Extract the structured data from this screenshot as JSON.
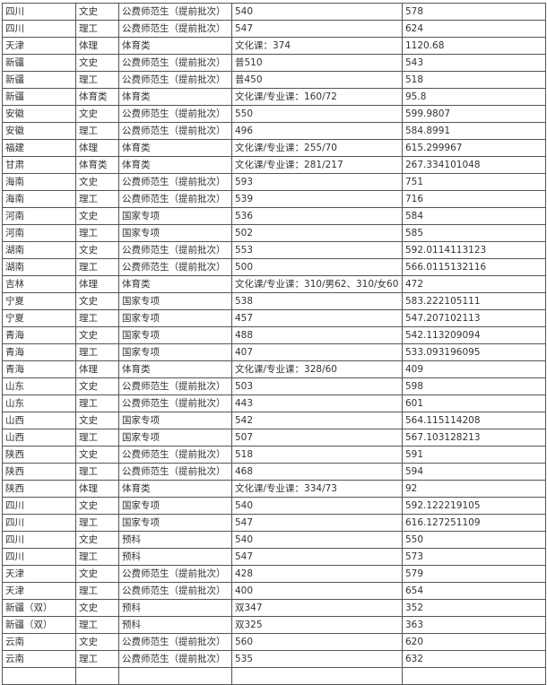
{
  "table": {
    "rows": [
      [
        "四川",
        "文史",
        "公费师范生（提前批次）",
        "540",
        "578"
      ],
      [
        "四川",
        "理工",
        "公费师范生（提前批次）",
        "547",
        "624"
      ],
      [
        "天津",
        "体理",
        "体育类",
        "文化课：374",
        "1120.68"
      ],
      [
        "新疆",
        "文史",
        "公费师范生（提前批次）",
        "普510",
        "543"
      ],
      [
        "新疆",
        "理工",
        "公费师范生（提前批次）",
        "普450",
        "518"
      ],
      [
        "新疆",
        "体育类",
        "体育类",
        "文化课/专业课：160/72",
        "95.8"
      ],
      [
        "安徽",
        "文史",
        "公费师范生（提前批次）",
        "550",
        "599.9807"
      ],
      [
        "安徽",
        "理工",
        "公费师范生（提前批次）",
        "496",
        "584.8991"
      ],
      [
        "福建",
        "体理",
        "体育类",
        "文化课/专业课：255/70",
        "615.299967"
      ],
      [
        "甘肃",
        "体育类",
        "体育类",
        "文化课/专业课：281/217",
        "267.334101048"
      ],
      [
        "海南",
        "文史",
        "公费师范生（提前批次）",
        "593",
        "751"
      ],
      [
        "海南",
        "理工",
        "公费师范生（提前批次）",
        "539",
        "716"
      ],
      [
        "河南",
        "文史",
        "国家专项",
        "536",
        "584"
      ],
      [
        "河南",
        "理工",
        "国家专项",
        "502",
        "585"
      ],
      [
        "湖南",
        "文史",
        "公费师范生（提前批次）",
        "553",
        "592.0114113123"
      ],
      [
        "湖南",
        "理工",
        "公费师范生（提前批次）",
        "500",
        "566.0115132116"
      ],
      [
        "吉林",
        "体理",
        "体育类",
        "文化课/专业课：310/男62、310/女60",
        "472"
      ],
      [
        "宁夏",
        "文史",
        "国家专项",
        "538",
        "583.222105111"
      ],
      [
        "宁夏",
        "理工",
        "国家专项",
        "457",
        "547.207102113"
      ],
      [
        "青海",
        "文史",
        "国家专项",
        "488",
        "542.113209094"
      ],
      [
        "青海",
        "理工",
        "国家专项",
        "407",
        "533.093196095"
      ],
      [
        "青海",
        "体理",
        "体育类",
        "文化课/专业课：328/60",
        "409"
      ],
      [
        "山东",
        "文史",
        "公费师范生（提前批次）",
        "503",
        "598"
      ],
      [
        "山东",
        "理工",
        "公费师范生（提前批次）",
        "443",
        "601"
      ],
      [
        "山西",
        "文史",
        "国家专项",
        "542",
        "564.115114208"
      ],
      [
        "山西",
        "理工",
        "国家专项",
        "507",
        "567.103128213"
      ],
      [
        "陕西",
        "文史",
        "公费师范生（提前批次）",
        "518",
        "591"
      ],
      [
        "陕西",
        "理工",
        "公费师范生（提前批次）",
        "468",
        "594"
      ],
      [
        "陕西",
        "体理",
        "体育类",
        "文化课/专业课：334/73",
        "92"
      ],
      [
        "四川",
        "文史",
        "国家专项",
        "540",
        "592.122219105"
      ],
      [
        "四川",
        "理工",
        "国家专项",
        "547",
        "616.127251109"
      ],
      [
        "四川",
        "文史",
        "预科",
        "540",
        "550"
      ],
      [
        "四川",
        "理工",
        "预科",
        "547",
        "573"
      ],
      [
        "天津",
        "文史",
        "公费师范生（提前批次）",
        "428",
        "579"
      ],
      [
        "天津",
        "理工",
        "公费师范生（提前批次）",
        "400",
        "654"
      ],
      [
        "新疆（双）",
        "文史",
        "预科",
        "双347",
        "352"
      ],
      [
        "新疆（双）",
        "理工",
        "预科",
        "双325",
        "363"
      ],
      [
        "云南",
        "文史",
        "公费师范生（提前批次）",
        "560",
        "620"
      ],
      [
        "云南",
        "理工",
        "公费师范生（提前批次）",
        "535",
        "632"
      ],
      [
        "",
        "",
        "",
        "",
        ""
      ]
    ]
  }
}
